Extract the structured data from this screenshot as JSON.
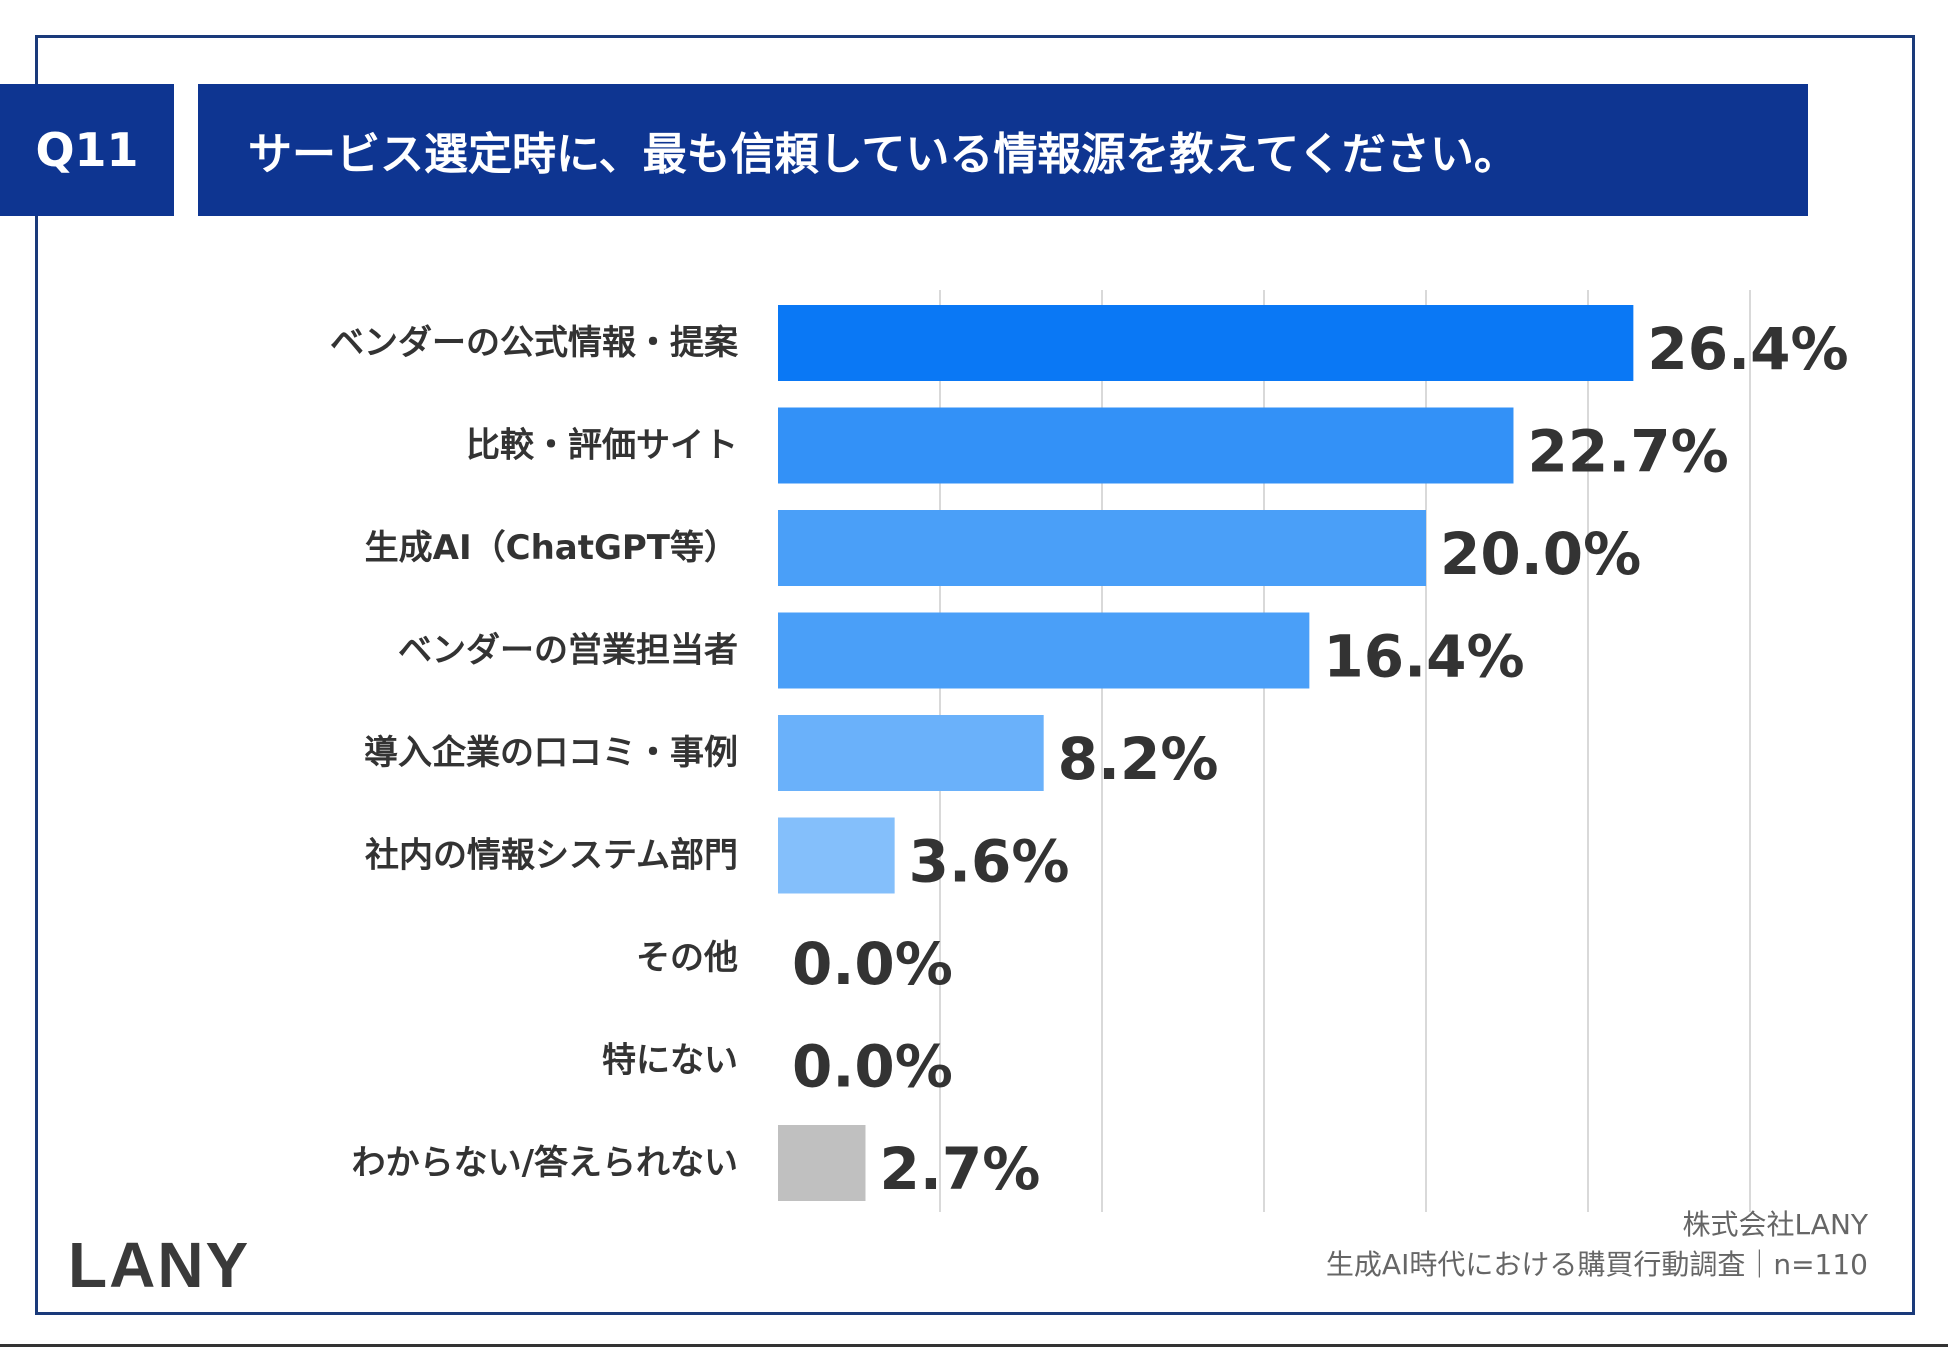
{
  "header": {
    "question_no": "Q11",
    "question": "サービス選定時に、最も信頼している情報源を教えてください。"
  },
  "chart_data": {
    "type": "bar",
    "orientation": "horizontal",
    "categories": [
      "ベンダーの公式情報・提案",
      "比較・評価サイト",
      "生成AI（ChatGPT等）",
      "ベンダーの営業担当者",
      "導入企業の口コミ・事例",
      "社内の情報システム部門",
      "その他",
      "特にない",
      "わからない/答えられない"
    ],
    "values": [
      26.4,
      22.7,
      20.0,
      16.4,
      8.2,
      3.6,
      0.0,
      0.0,
      2.7
    ],
    "value_labels": [
      "26.4%",
      "22.7%",
      "20.0%",
      "16.4%",
      "8.2%",
      "3.6%",
      "0.0%",
      "0.0%",
      "2.7%"
    ],
    "bar_colors": [
      "#0a78f5",
      "#3391f7",
      "#4a9ff8",
      "#4a9ff8",
      "#6ab1fa",
      "#84bffb",
      "#84bffb",
      "#84bffb",
      "#c0c0c0"
    ],
    "xlim": [
      0,
      30
    ],
    "grid": true
  },
  "brand": {
    "logo": "LANY"
  },
  "footer": {
    "company": "株式会社LANY",
    "survey": "生成AI時代における購買行動調査｜n=110"
  }
}
